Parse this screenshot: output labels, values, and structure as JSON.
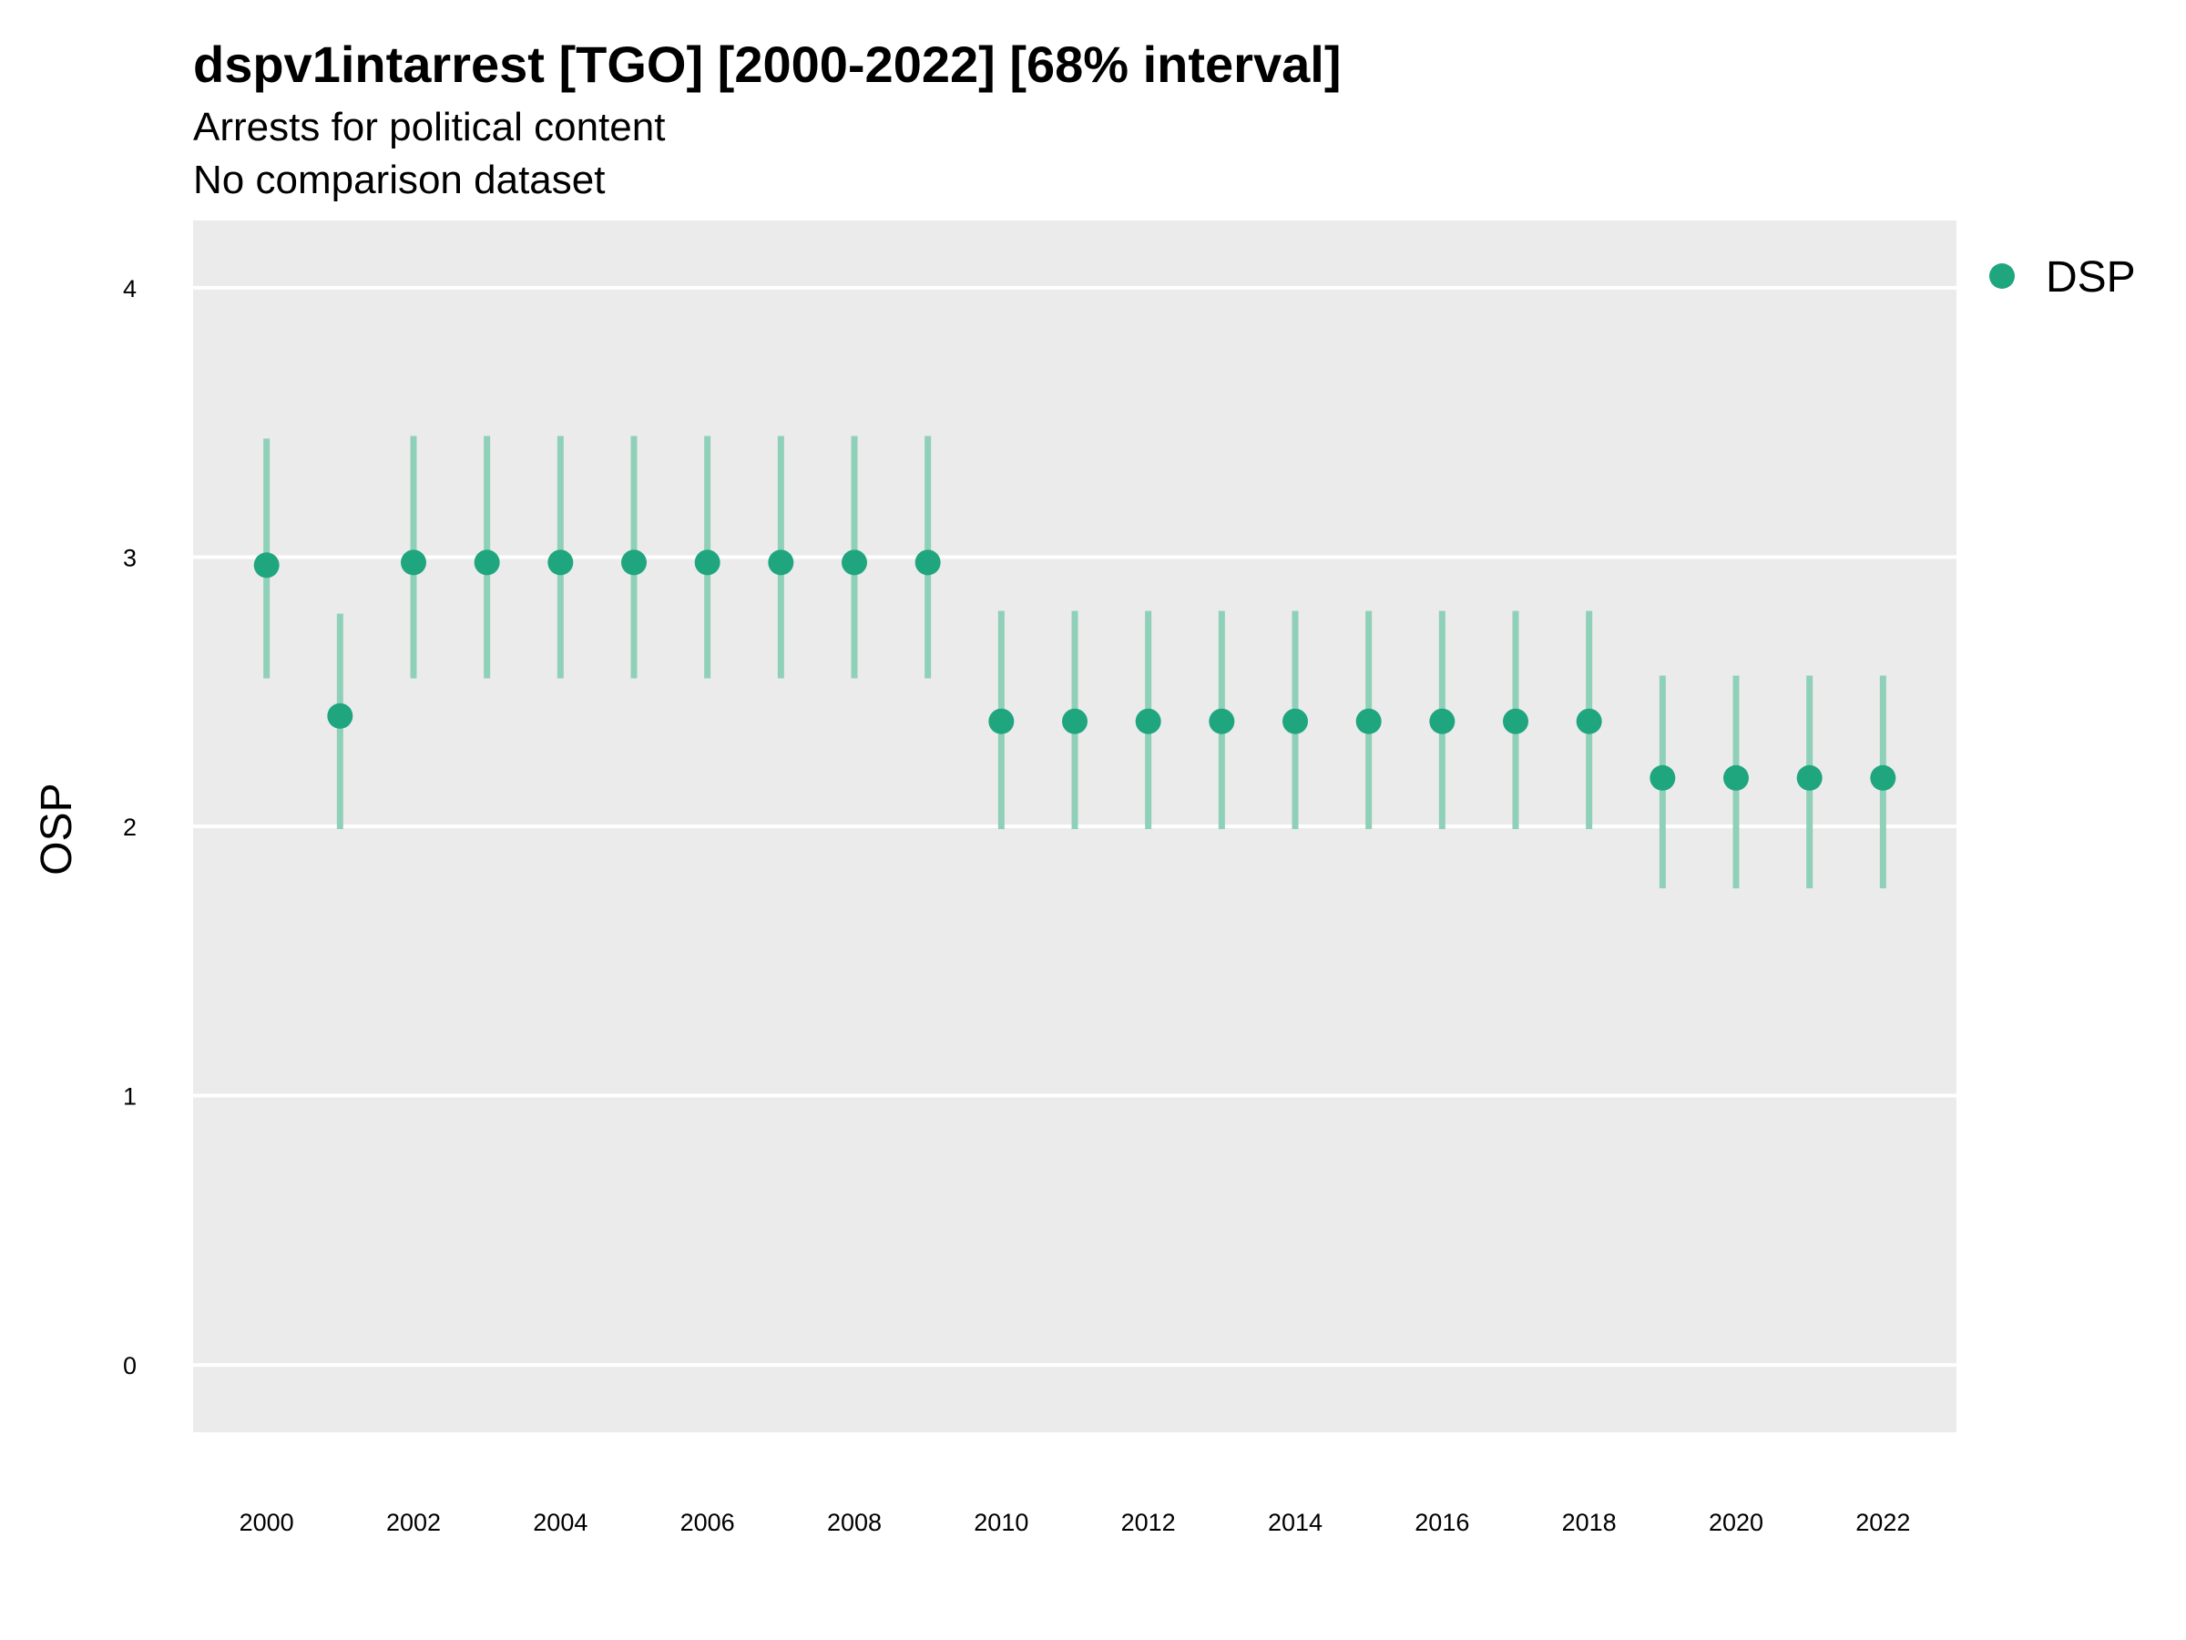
{
  "chart_data": {
    "type": "scatter",
    "title": "dspv1intarrest [TGO] [2000-2022] [68% interval]",
    "subtitle": "Arrests for political content",
    "caption": "No comparison dataset",
    "xlabel": "",
    "ylabel": "OSP",
    "xlim": [
      1999,
      2023
    ],
    "ylim": [
      -0.25,
      4.25
    ],
    "yticks": [
      0,
      1,
      2,
      3,
      4
    ],
    "xticks": [
      2000,
      2002,
      2004,
      2006,
      2008,
      2010,
      2012,
      2014,
      2016,
      2018,
      2020,
      2022
    ],
    "grid": true,
    "legend_position": "right",
    "series": [
      {
        "name": "DSP",
        "color": "#1fa67f",
        "interval_color": "#8fd0b8",
        "x": [
          2000,
          2001,
          2002,
          2003,
          2004,
          2005,
          2006,
          2007,
          2008,
          2009,
          2010,
          2011,
          2012,
          2013,
          2014,
          2015,
          2016,
          2017,
          2018,
          2019,
          2020,
          2021,
          2022
        ],
        "y": [
          2.97,
          2.41,
          2.98,
          2.98,
          2.98,
          2.98,
          2.98,
          2.98,
          2.98,
          2.98,
          2.39,
          2.39,
          2.39,
          2.39,
          2.39,
          2.39,
          2.39,
          2.39,
          2.39,
          2.18,
          2.18,
          2.18,
          2.18
        ],
        "lower": [
          2.55,
          1.99,
          2.55,
          2.55,
          2.55,
          2.55,
          2.55,
          2.55,
          2.55,
          2.55,
          1.99,
          1.99,
          1.99,
          1.99,
          1.99,
          1.99,
          1.99,
          1.99,
          1.99,
          1.77,
          1.77,
          1.77,
          1.77
        ],
        "upper": [
          3.44,
          2.79,
          3.45,
          3.45,
          3.45,
          3.45,
          3.45,
          3.45,
          3.45,
          3.45,
          2.8,
          2.8,
          2.8,
          2.8,
          2.8,
          2.8,
          2.8,
          2.8,
          2.8,
          2.56,
          2.56,
          2.56,
          2.56
        ]
      }
    ]
  }
}
